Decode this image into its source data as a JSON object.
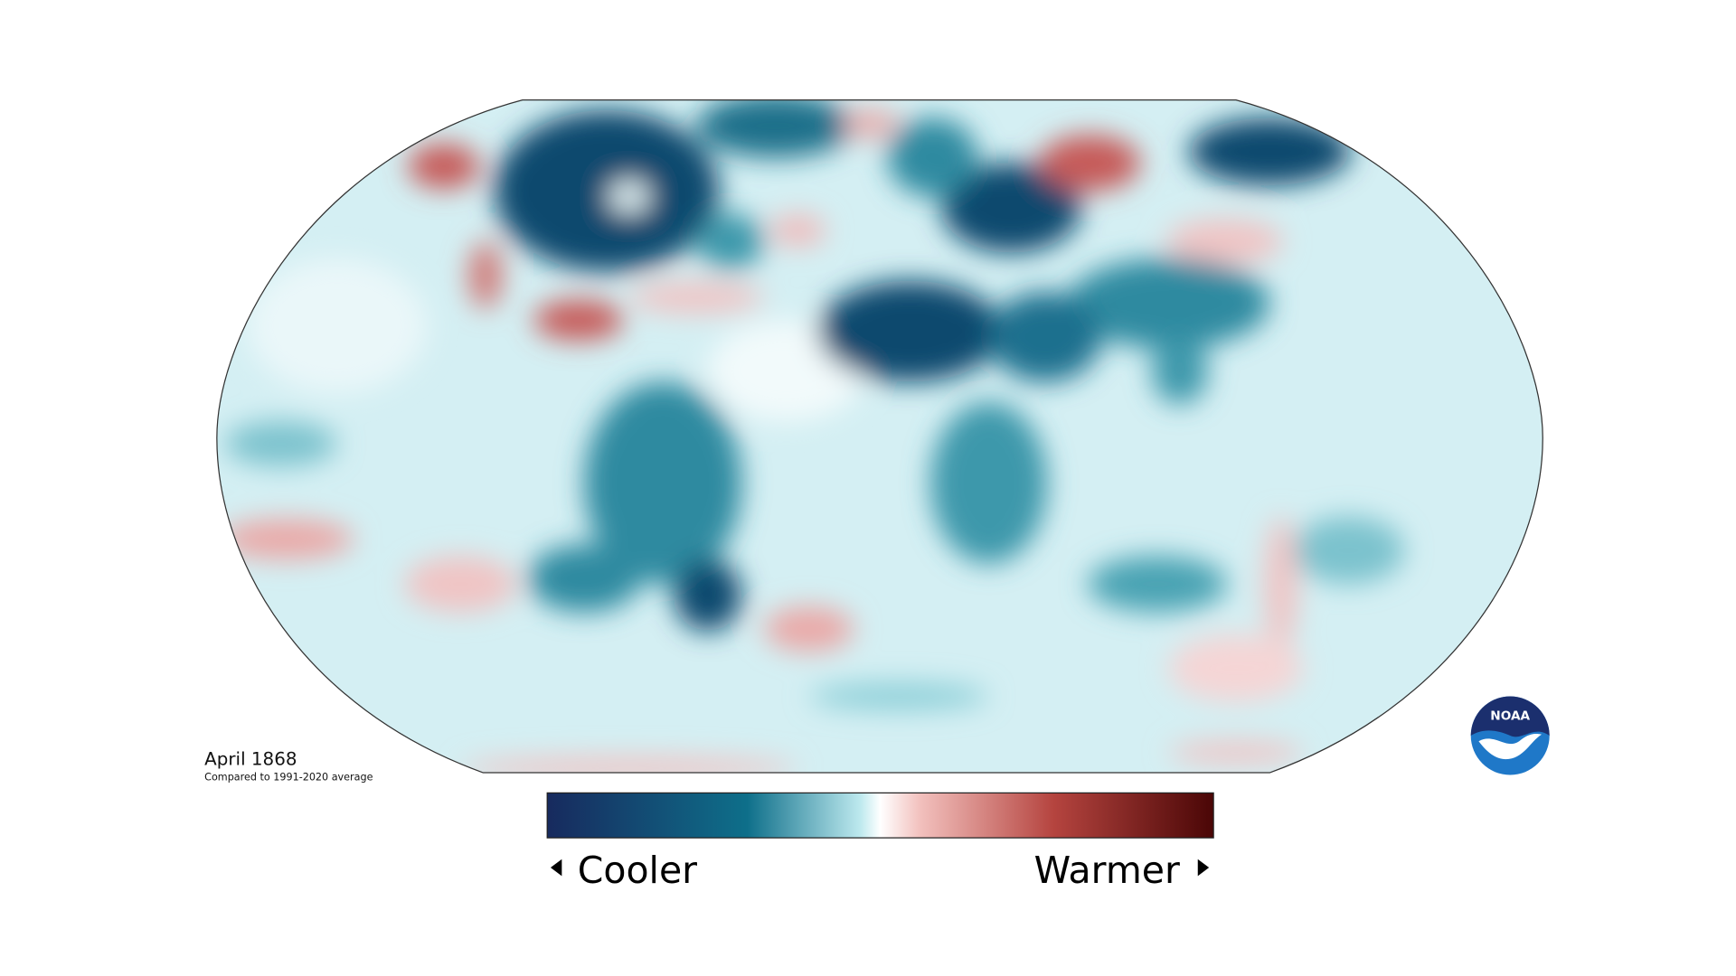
{
  "map": {
    "title": "April 1868",
    "subtitle": "Compared to 1991-2020 average"
  },
  "legend": {
    "low_label": "Cooler",
    "high_label": "Warmer"
  },
  "logo": {
    "text": "NOAA"
  }
}
